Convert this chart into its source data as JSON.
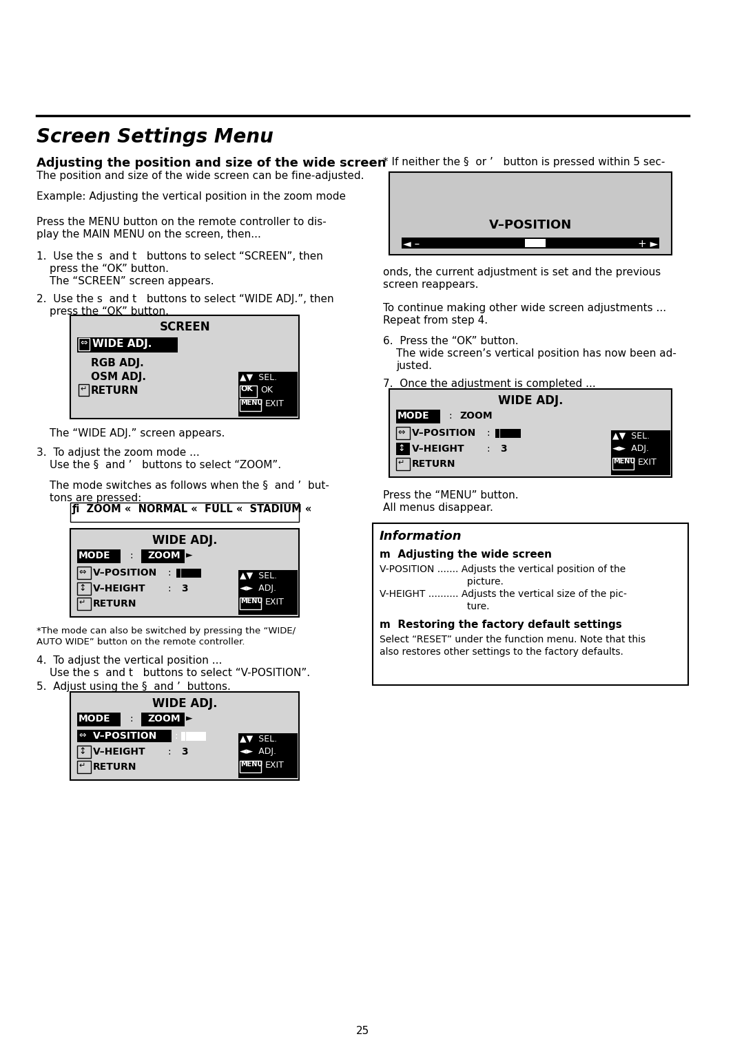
{
  "title": "Screen Settings Menu",
  "bg_color": "#ffffff",
  "text_color": "#000000",
  "page_number": "25",
  "section_heading": "Adjusting the position and size of the wide screen",
  "section_subtext": "The position and size of the wide screen can be fine-adjusted.",
  "example_text": "Example: Adjusting the vertical position in the zoom mode",
  "intro_text": "Press the MENU button on the remote controller to dis-\nplay the MAIN MENU on the screen, then...",
  "step1_text": "1.  Use the s  and t   buttons to select “SCREEN”, then\n     press the “OK” button.\n     The “SCREEN” screen appears.",
  "step2_text": "2.  Use the s  and t   buttons to select “WIDE ADJ.”, then\n     press the “OK” button.",
  "wide_adj_appears": "The “WIDE ADJ.” screen appears.",
  "step3_text": "3.  To adjust the zoom mode ...\n     Use the §  and ’   buttons to select “ZOOM”.",
  "step3b_text": "The mode switches as follows when the §  and ’  but-\ntons are pressed:",
  "zoom_cycle": "ƒi  ZOOM «  NORMAL «  FULL «  STADIUM «",
  "step4_text": "4.  To adjust the vertical position ...\n     Use the s  and t   buttons to select “V-POSITION”.",
  "step5_text": "5.  Adjust using the §  and ’  buttons.",
  "step6_text": "6.  Press the “OK” button.\n     The wide screen’s vertical position has now been ad-\n     justed.",
  "step7_text": "7.  Once the adjustment is completed ...",
  "press_menu": "Press the “MENU” button.\nAll menus disappear.",
  "right_col_top": "* If neither the §  or ’   button is pressed within 5 sec-",
  "right_col_top2": "onds, the current adjustment is set and the previous\nscreen reappears.",
  "right_col_continue": "To continue making other wide screen adjustments ...\nRepeat from step 4.",
  "info_title": "Information",
  "info_adj_title": "m  Adjusting the wide screen",
  "info_vposition": "V-POSITION ....... Adjusts the vertical position of the\n                            picture.",
  "info_vheight": "V-HEIGHT .......... Adjusts the vertical size of the pic-\n                            ture.",
  "info_restore_title": "m  Restoring the factory default settings",
  "info_restore_text": "Select “RESET” under the function menu. Note that this\nalso restores other settings to the factory defaults."
}
